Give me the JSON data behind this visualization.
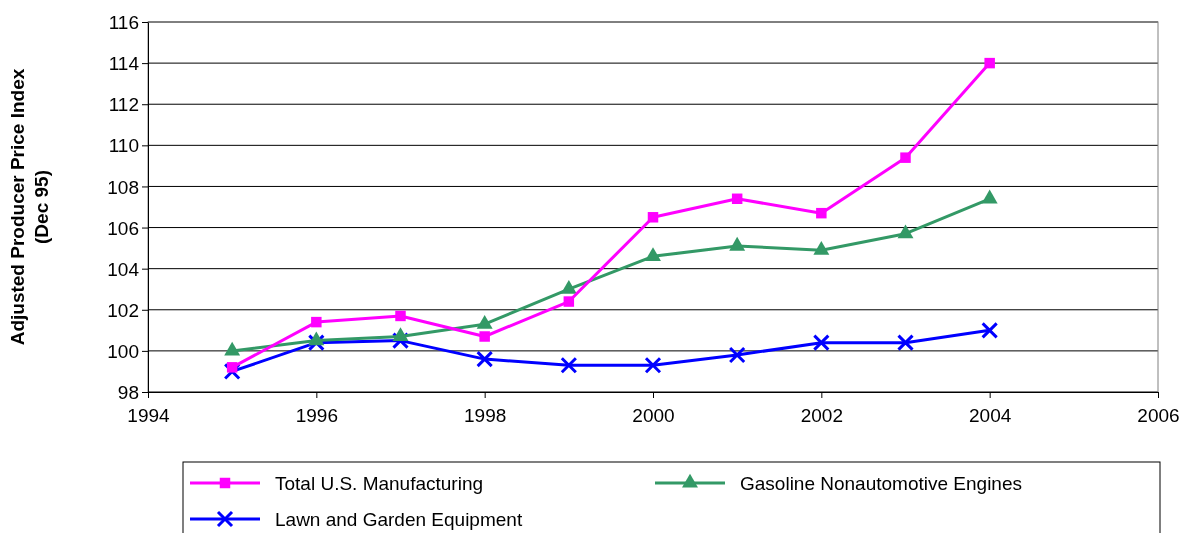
{
  "chart_data": {
    "type": "line",
    "ylabel": "Adjusted Producer Price Index (Dec 95)",
    "x": [
      1995,
      1996,
      1997,
      1998,
      1999,
      2000,
      2001,
      2002,
      2003,
      2004
    ],
    "xlim": [
      1994,
      2006
    ],
    "xticks": [
      1994,
      1996,
      1998,
      2000,
      2002,
      2004,
      2006
    ],
    "ylim": [
      98,
      116
    ],
    "yticks": [
      98,
      100,
      102,
      104,
      106,
      108,
      110,
      112,
      114,
      116
    ],
    "grid": "y",
    "legend": "bottom",
    "series": [
      {
        "name": "Total U.S. Manufacturing",
        "color": "#ff00ff",
        "marker": "square",
        "values": [
          99.2,
          101.4,
          101.7,
          100.7,
          102.4,
          106.5,
          107.4,
          106.7,
          109.4,
          114.0
        ]
      },
      {
        "name": "Gasoline Nonautomotive Engines",
        "color": "#339966",
        "marker": "triangle",
        "values": [
          100.0,
          100.5,
          100.7,
          101.3,
          103.0,
          104.6,
          105.1,
          104.9,
          105.7,
          107.4
        ]
      },
      {
        "name": "Lawn and Garden Equipment",
        "color": "#0000ff",
        "marker": "cross",
        "values": [
          99.0,
          100.4,
          100.5,
          99.6,
          99.3,
          99.3,
          99.8,
          100.4,
          100.4,
          101.0
        ]
      }
    ]
  }
}
